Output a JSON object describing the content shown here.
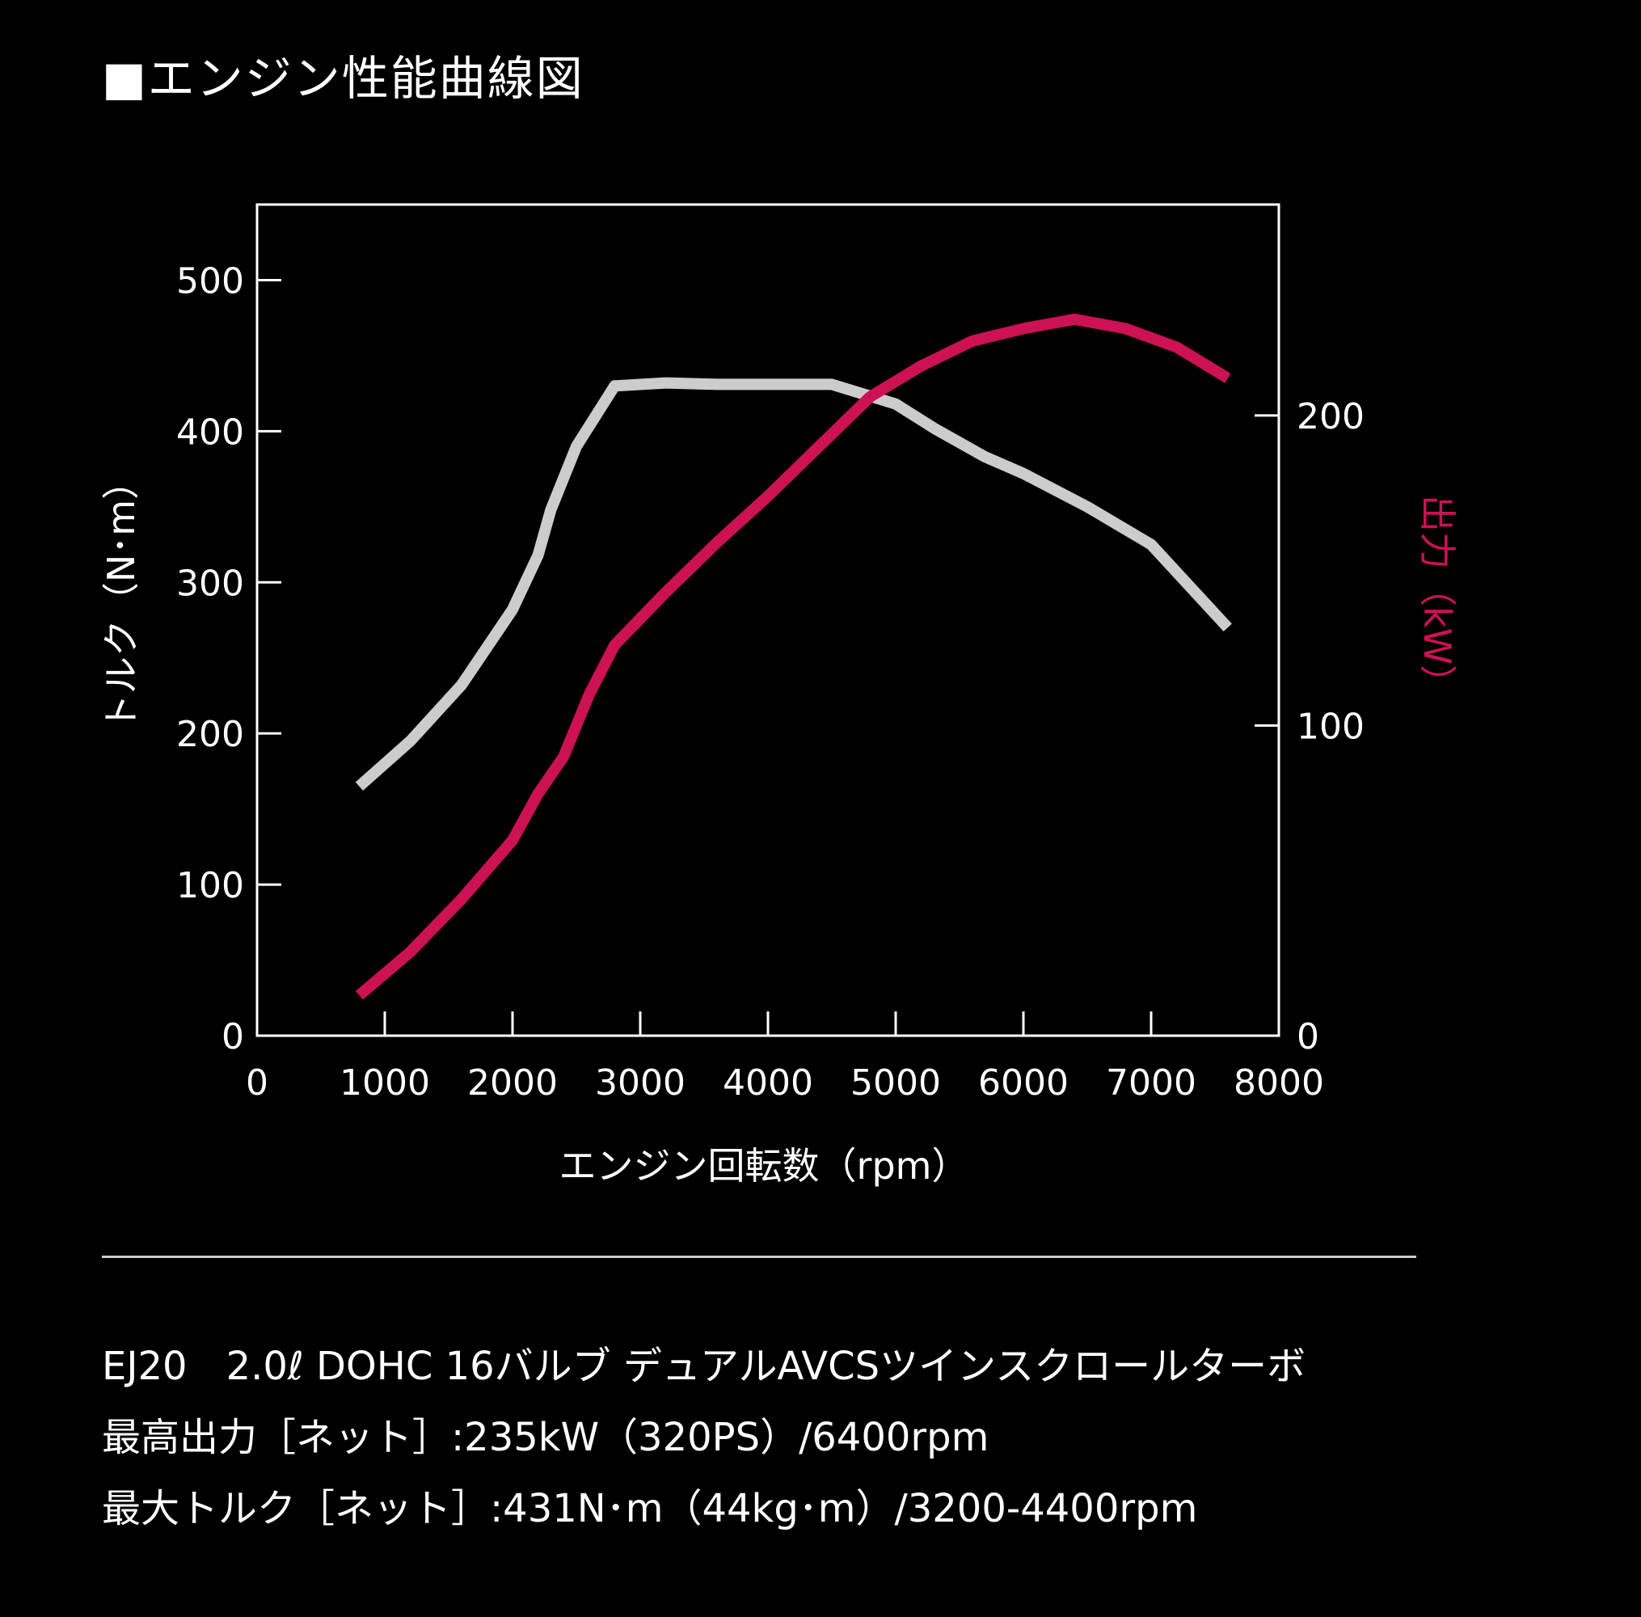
{
  "heading": "■エンジン性能曲線図",
  "colors": {
    "background": "#000000",
    "torque_line": "#cccccc",
    "power_line": "#cc1155",
    "axis_text": "#ffffff"
  },
  "chart_data": {
    "type": "line",
    "grid": false,
    "x_axis": {
      "label": "エンジン回転数（rpm）",
      "range": [
        0,
        8000
      ],
      "ticks": [
        0,
        1000,
        2000,
        3000,
        4000,
        5000,
        6000,
        7000,
        8000
      ]
    },
    "y_left": {
      "label": "トルク（N･m）",
      "range": [
        0,
        550
      ],
      "ticks": [
        0,
        100,
        200,
        300,
        400,
        500
      ]
    },
    "y_right": {
      "label": "出力（kW）",
      "range": [
        0,
        268
      ],
      "ticks": [
        0,
        100,
        200
      ]
    },
    "series": [
      {
        "axis": "left",
        "color": "#cccccc",
        "points": [
          [
            800,
            165
          ],
          [
            1200,
            195
          ],
          [
            1600,
            232
          ],
          [
            2000,
            282
          ],
          [
            2200,
            318
          ],
          [
            2300,
            348
          ],
          [
            2500,
            390
          ],
          [
            2800,
            430
          ],
          [
            3200,
            432
          ],
          [
            3600,
            431
          ],
          [
            4000,
            431
          ],
          [
            4500,
            431
          ],
          [
            5000,
            418
          ],
          [
            5300,
            402
          ],
          [
            5700,
            383
          ],
          [
            6000,
            372
          ],
          [
            6500,
            350
          ],
          [
            7000,
            325
          ],
          [
            7600,
            270
          ]
        ]
      },
      {
        "axis": "right",
        "color": "#cc1155",
        "points": [
          [
            800,
            13
          ],
          [
            1200,
            27
          ],
          [
            1600,
            44
          ],
          [
            2000,
            63
          ],
          [
            2200,
            78
          ],
          [
            2400,
            90
          ],
          [
            2600,
            110
          ],
          [
            2800,
            126
          ],
          [
            3200,
            143
          ],
          [
            3600,
            159
          ],
          [
            4000,
            174
          ],
          [
            4400,
            190
          ],
          [
            4800,
            206
          ],
          [
            5200,
            216
          ],
          [
            5600,
            224
          ],
          [
            6000,
            228
          ],
          [
            6400,
            231
          ],
          [
            6800,
            228
          ],
          [
            7200,
            222
          ],
          [
            7600,
            212
          ]
        ]
      }
    ]
  },
  "specs": {
    "line1": "EJ20　2.0ℓ DOHC 16バルブ デュアルAVCSツインスクロールターボ",
    "line2": "最高出力［ネット］:235kW（320PS）/6400rpm",
    "line3": "最大トルク［ネット］:431N･m（44kg･m）/3200-4400rpm"
  }
}
